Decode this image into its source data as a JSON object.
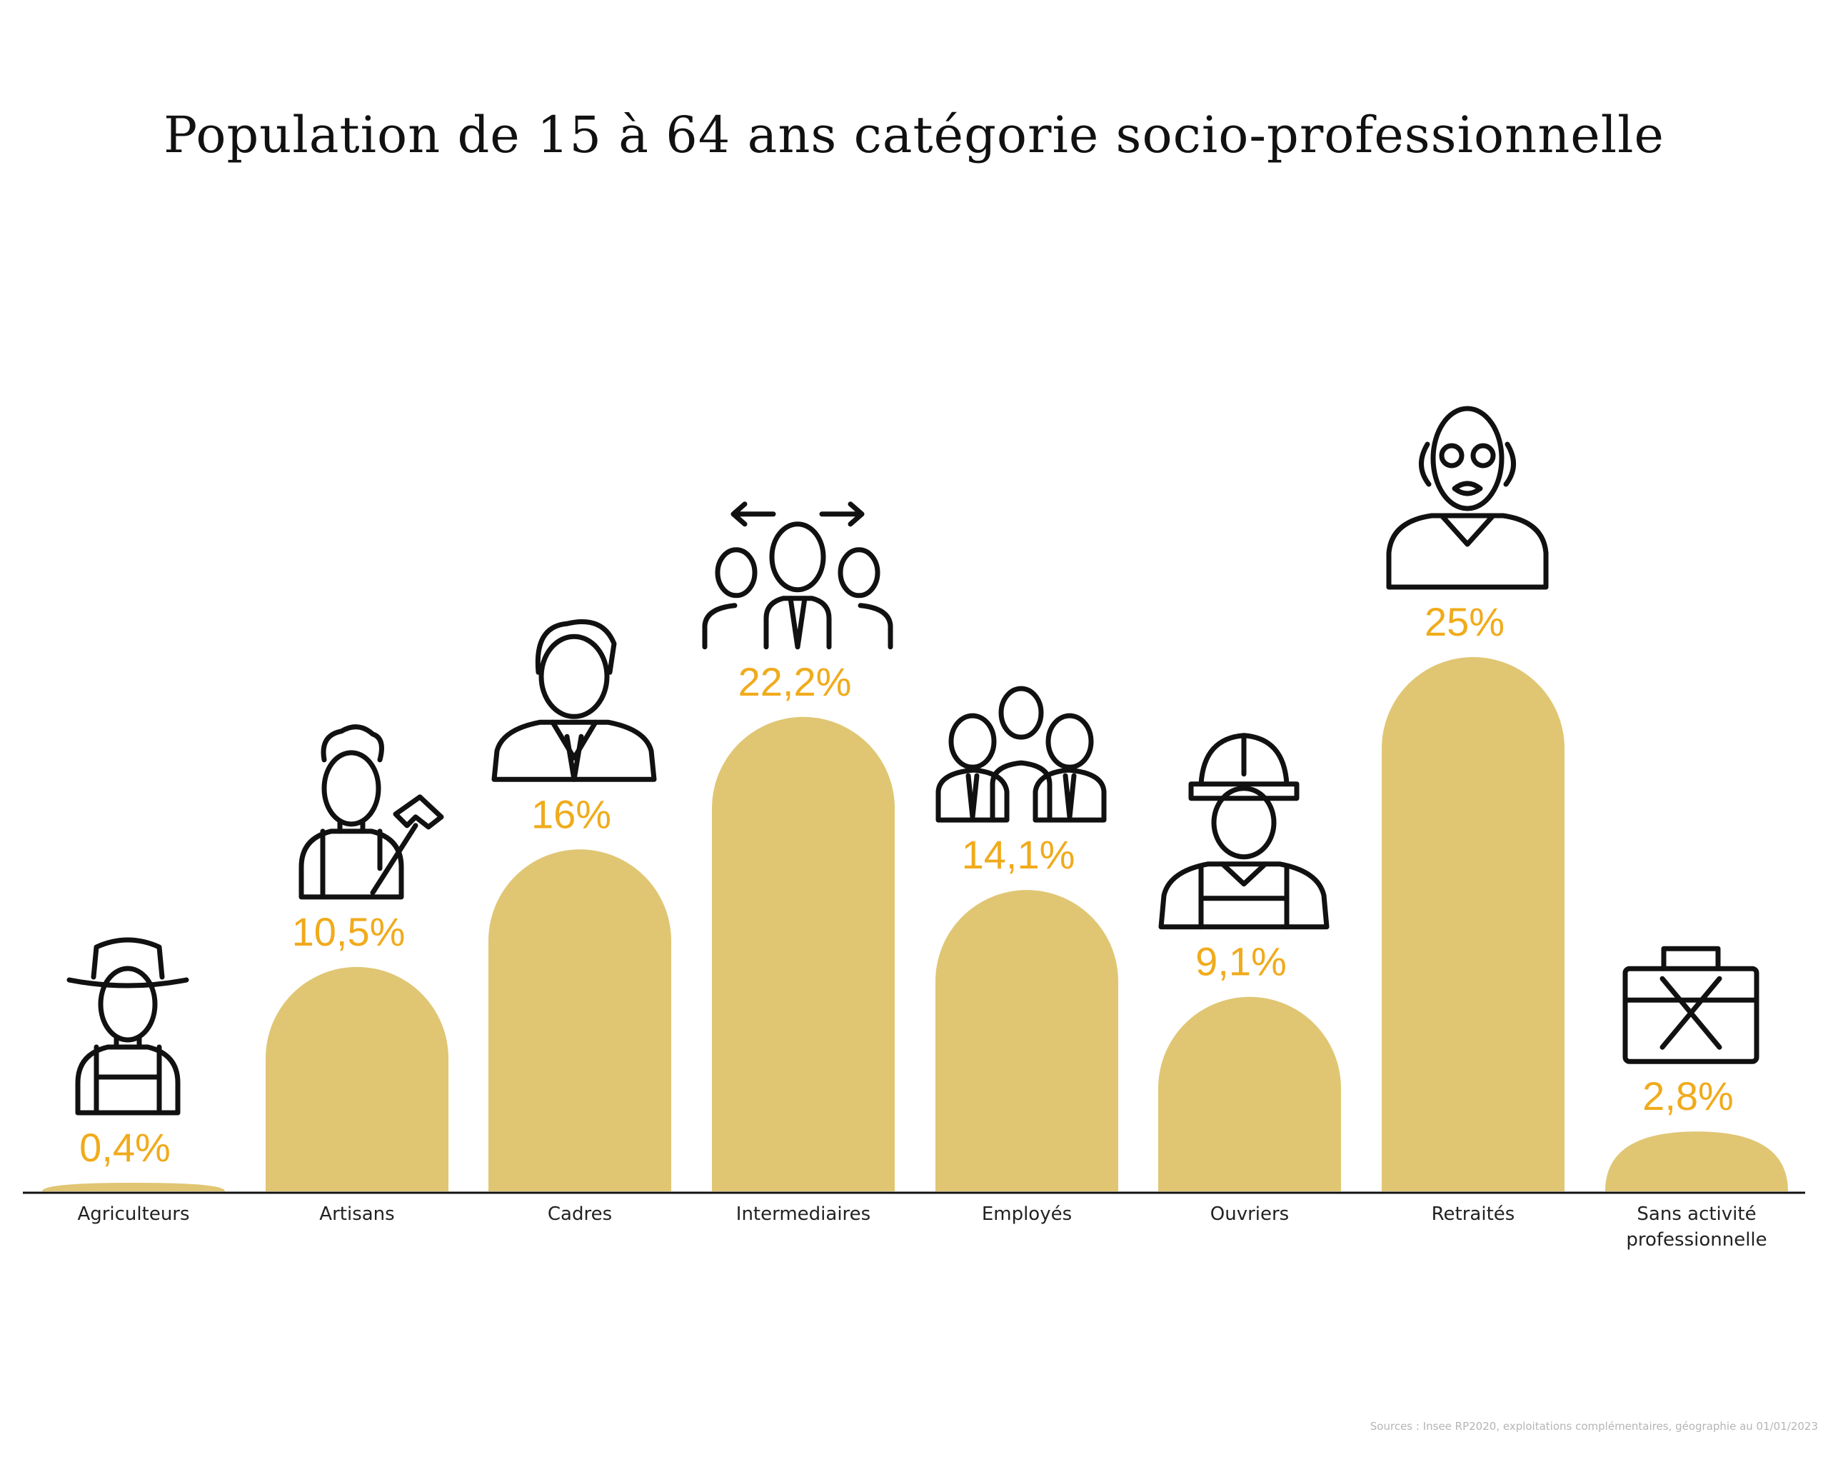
{
  "chart_data": {
    "type": "bar",
    "title": "Population de 15 à 64 ans catégorie socio-professionnelle",
    "categories": [
      "Agriculteurs",
      "Artisans",
      "Cadres",
      "Intermediaires",
      "Employés",
      "Ouvriers",
      "Retraités",
      "Sans activité professionnelle"
    ],
    "values": [
      0.4,
      10.5,
      16,
      22.2,
      14.1,
      9.1,
      25,
      2.8
    ],
    "value_labels": [
      "0,4%",
      "10,5%",
      "16%",
      "22,2%",
      "14,1%",
      "9,1%",
      "25%",
      "2,8%"
    ],
    "icons": [
      "farmer-icon",
      "craftsman-hammer-icon",
      "executive-icon",
      "team-manager-icon",
      "employees-group-icon",
      "construction-worker-icon",
      "retiree-icon",
      "briefcase-cross-icon"
    ],
    "xlabel": "",
    "ylabel": "",
    "ylim": [
      0,
      25
    ],
    "grid": false,
    "legend": "none"
  },
  "source": "Sources : Insee RP2020, exploitations complémentaires, géographie au 01/01/2023",
  "colors": {
    "bar": "#e0c673",
    "value_text": "#f0ab1c",
    "axis": "#111111",
    "text": "#111111"
  }
}
